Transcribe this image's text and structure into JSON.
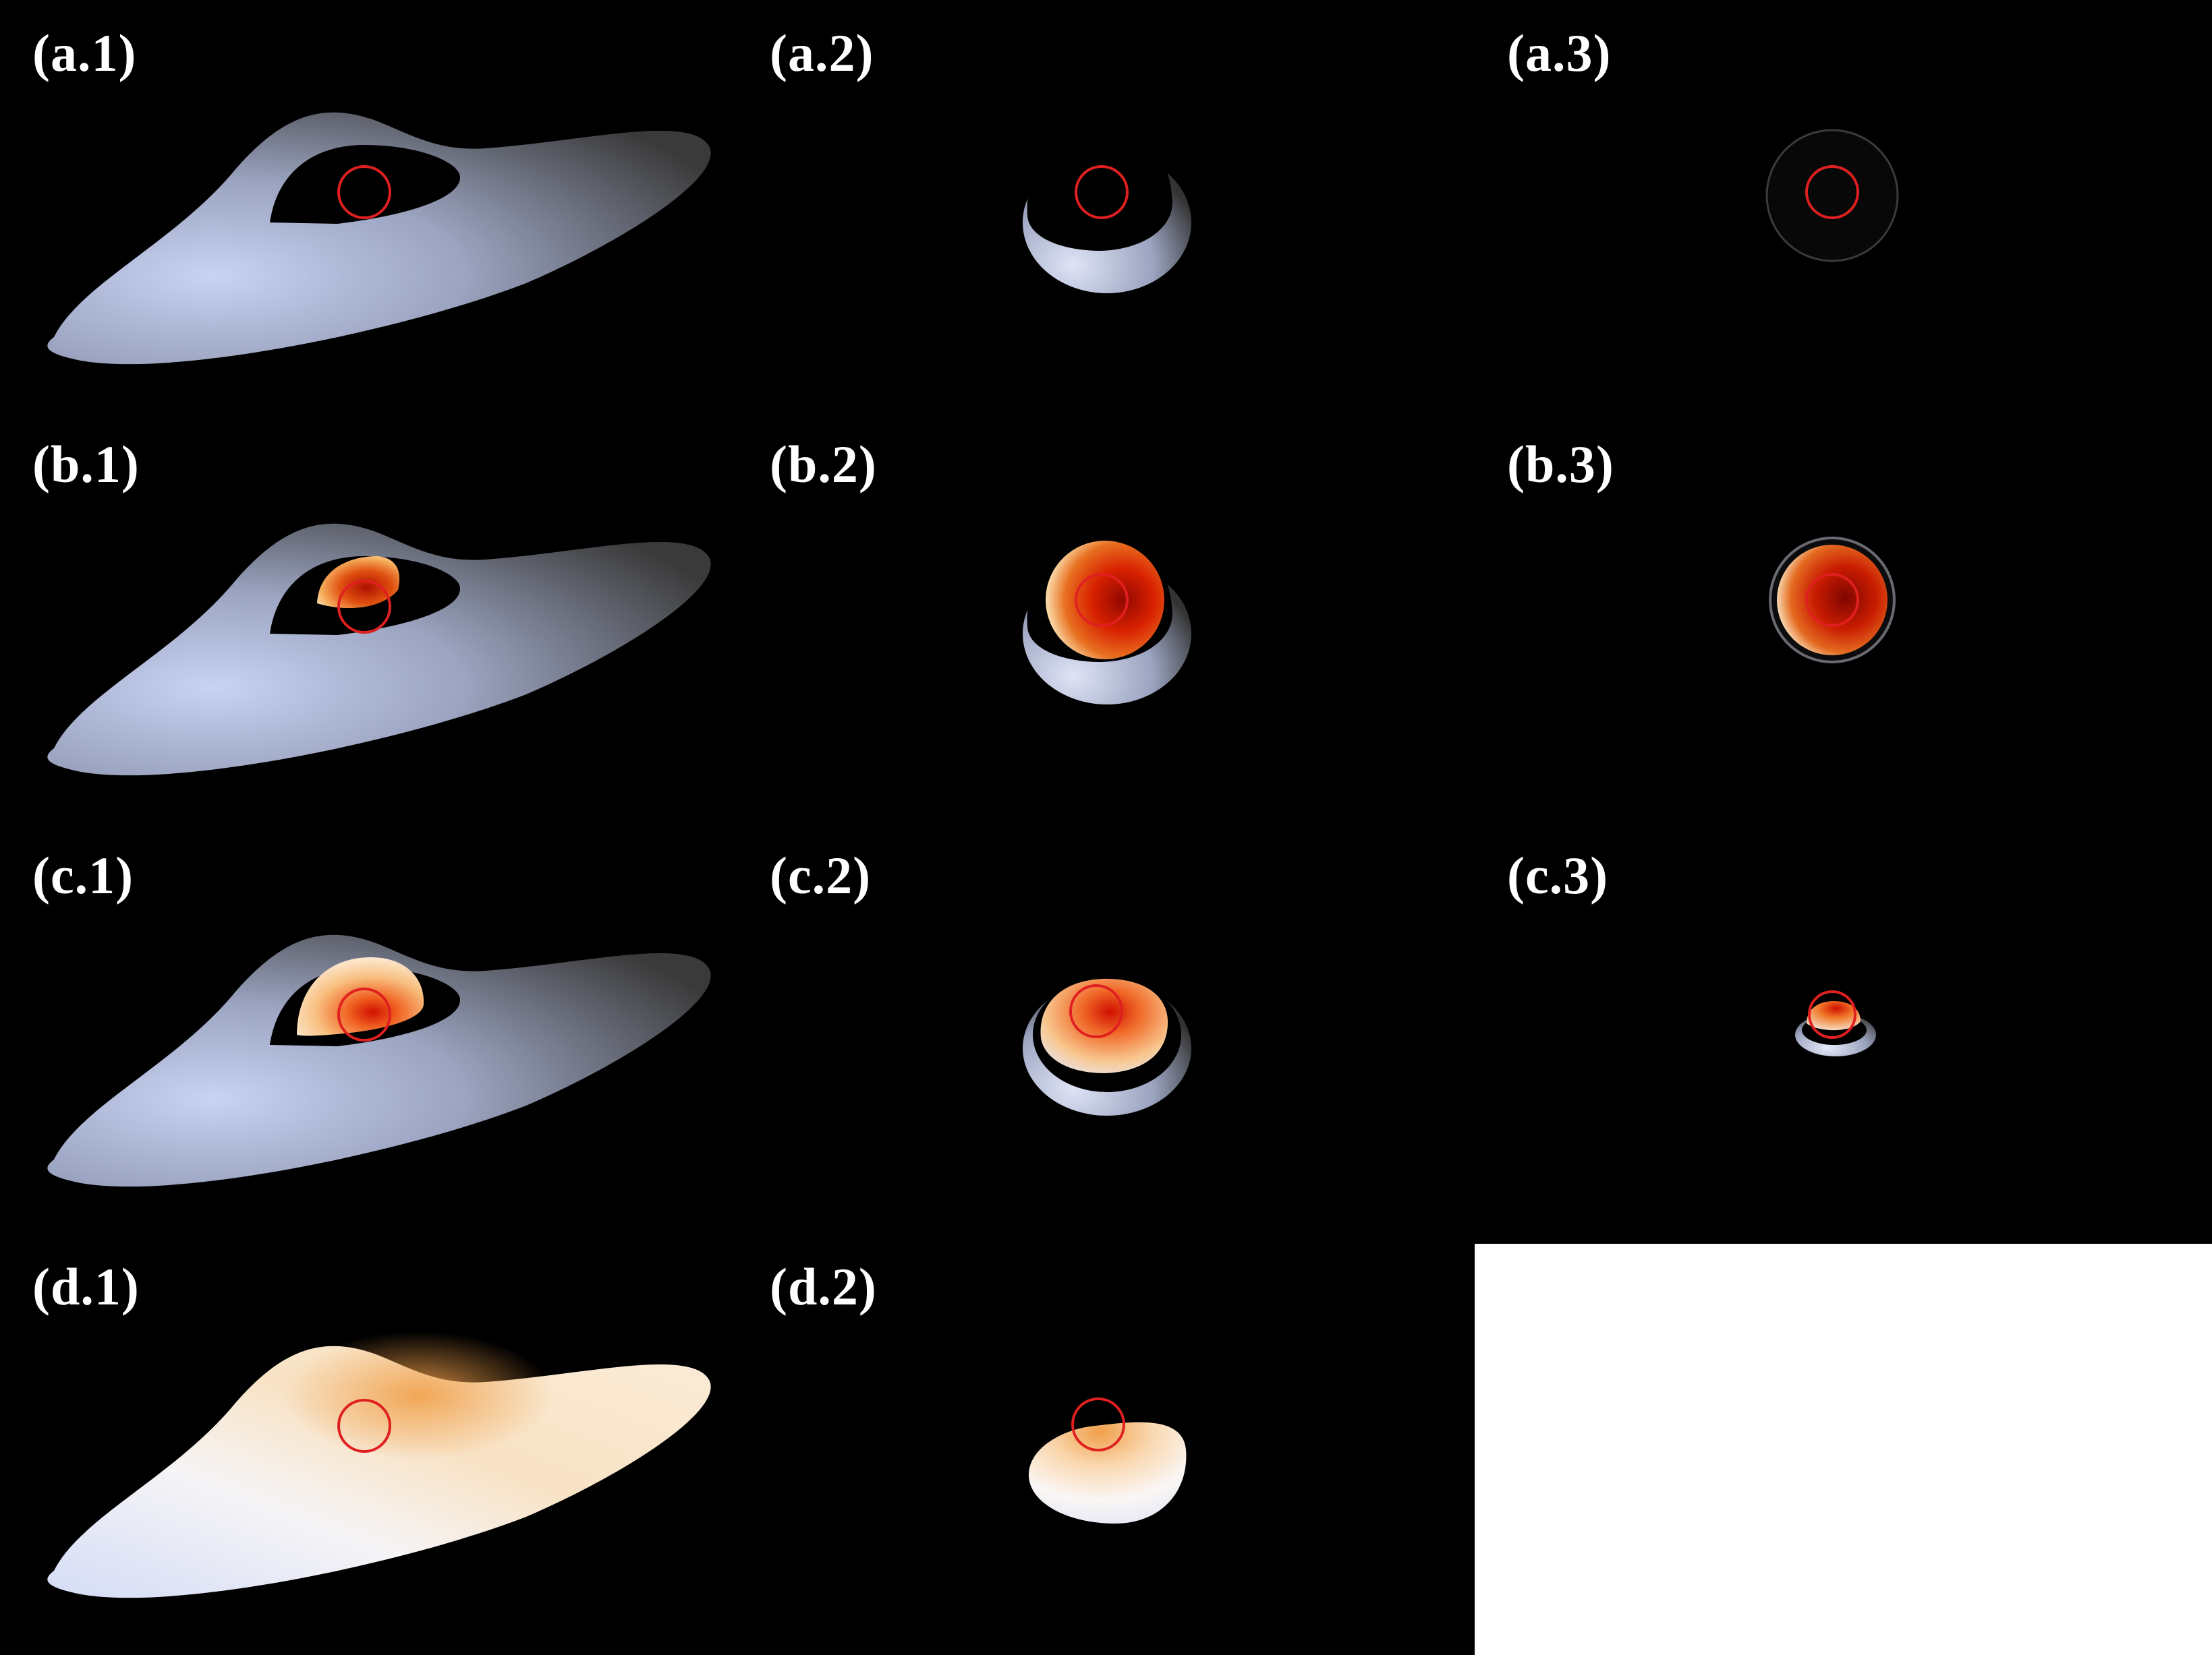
{
  "panels": [
    {
      "id": "a1",
      "label": "(a.1)"
    },
    {
      "id": "a2",
      "label": "(a.2)"
    },
    {
      "id": "a3",
      "label": "(a.3)"
    },
    {
      "id": "b1",
      "label": "(b.1)"
    },
    {
      "id": "b2",
      "label": "(b.2)"
    },
    {
      "id": "b3",
      "label": "(b.3)"
    },
    {
      "id": "c1",
      "label": "(c.1)"
    },
    {
      "id": "c2",
      "label": "(c.2)"
    },
    {
      "id": "c3",
      "label": "(c.3)"
    },
    {
      "id": "d1",
      "label": "(d.1)"
    },
    {
      "id": "d2",
      "label": "(d.2)"
    }
  ],
  "colors": {
    "background": "#000000",
    "label": "#ffffff",
    "marker_circle": "#e02020",
    "surface_grey": "#9aa3bf",
    "surface_white": "#f4f2f6",
    "hot_orange": "#f0a040",
    "hot_red": "#d81800"
  }
}
